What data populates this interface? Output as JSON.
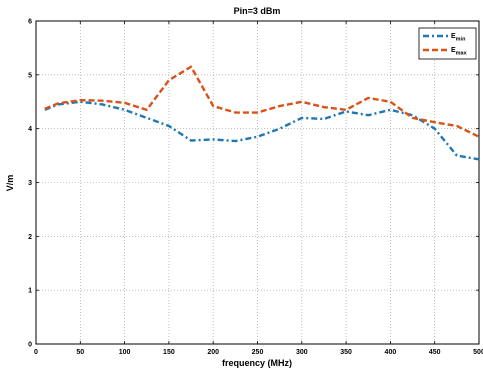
{
  "chart_data": {
    "type": "line",
    "title": "Pin=3 dBm",
    "xlabel": "frequency (MHz)",
    "ylabel": "V/m",
    "xlim": [
      0,
      500
    ],
    "ylim": [
      0,
      6
    ],
    "xticks": [
      "0",
      "50",
      "100",
      "150",
      "200",
      "250",
      "300",
      "350",
      "400",
      "450",
      "500"
    ],
    "yticks": [
      "0",
      "1",
      "2",
      "3",
      "4",
      "5",
      "6"
    ],
    "grid": true,
    "legend_position": "top-right",
    "x": [
      10,
      25,
      50,
      75,
      100,
      125,
      150,
      175,
      200,
      225,
      250,
      275,
      300,
      325,
      350,
      375,
      400,
      425,
      450,
      475,
      500
    ],
    "series": [
      {
        "name": "E_min",
        "legend_main": "E",
        "legend_sub": "min",
        "color": "#1f77b4",
        "dash": "dashdot",
        "values": [
          4.35,
          4.45,
          4.5,
          4.45,
          4.35,
          4.2,
          4.05,
          3.78,
          3.8,
          3.77,
          3.85,
          4.0,
          4.2,
          4.18,
          4.32,
          4.25,
          4.35,
          4.25,
          4.0,
          3.5,
          3.43
        ]
      },
      {
        "name": "E_max",
        "legend_main": "E",
        "legend_sub": "max",
        "color": "#d95319",
        "dash": "dashed",
        "values": [
          4.37,
          4.47,
          4.53,
          4.52,
          4.48,
          4.35,
          4.9,
          5.15,
          4.42,
          4.3,
          4.3,
          4.42,
          4.5,
          4.4,
          4.35,
          4.57,
          4.5,
          4.2,
          4.12,
          4.05,
          3.85
        ]
      }
    ]
  }
}
